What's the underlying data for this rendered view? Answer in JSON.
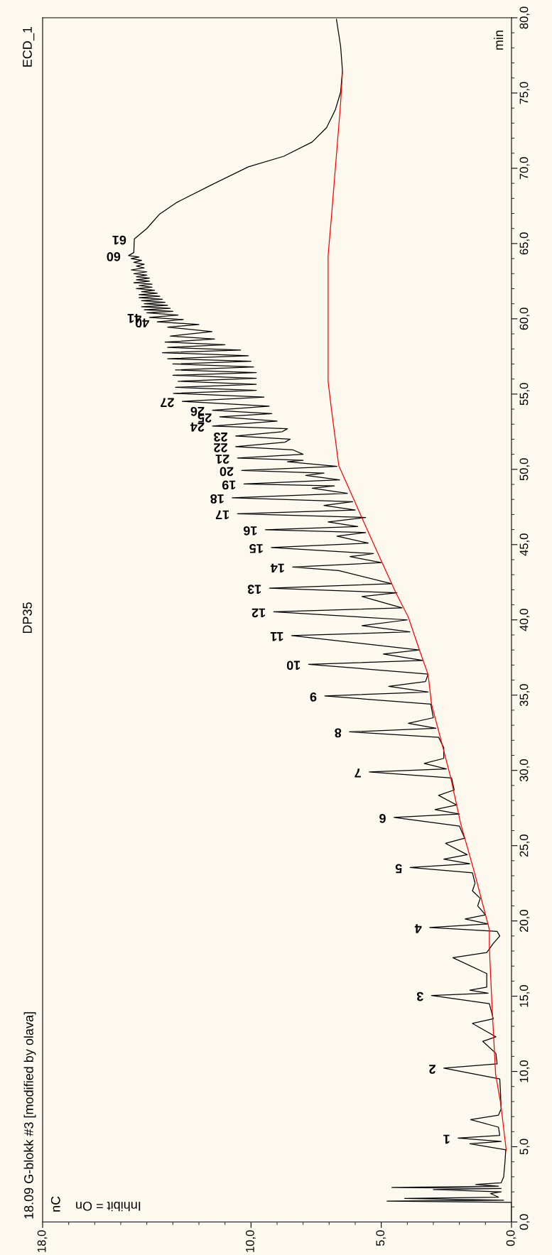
{
  "chart_data": {
    "type": "line",
    "title": "DP35",
    "subtitle": "ECD_1",
    "ylabel": "min",
    "xlim": [
      18,
      0
    ],
    "ylim": [
      0,
      80
    ],
    "yticks": [
      {
        "value": 0,
        "label": "0,0"
      },
      {
        "value": 1,
        "label": null
      },
      {
        "value": 2,
        "label": null
      },
      {
        "value": 3,
        "label": null
      },
      {
        "value": 4,
        "label": null
      },
      {
        "value": 5,
        "label": "5,0"
      },
      {
        "value": 6,
        "label": null
      },
      {
        "value": 7,
        "label": null
      },
      {
        "value": 8,
        "label": null
      },
      {
        "value": 9,
        "label": null
      },
      {
        "value": 10,
        "label": "10,0"
      },
      {
        "value": 11,
        "label": null
      },
      {
        "value": 12,
        "label": null
      },
      {
        "value": 13,
        "label": null
      },
      {
        "value": 14,
        "label": null
      },
      {
        "value": 15,
        "label": "15,0"
      },
      {
        "value": 16,
        "label": null
      },
      {
        "value": 17,
        "label": null
      },
      {
        "value": 18,
        "label": null
      },
      {
        "value": 19,
        "label": null
      },
      {
        "value": 20,
        "label": "20,0"
      },
      {
        "value": 21,
        "label": null
      },
      {
        "value": 22,
        "label": null
      },
      {
        "value": 23,
        "label": null
      },
      {
        "value": 24,
        "label": null
      },
      {
        "value": 25,
        "label": "25,0"
      },
      {
        "value": 26,
        "label": null
      },
      {
        "value": 27,
        "label": null
      },
      {
        "value": 28,
        "label": null
      },
      {
        "value": 29,
        "label": null
      },
      {
        "value": 30,
        "label": "30,0"
      },
      {
        "value": 31,
        "label": null
      },
      {
        "value": 32,
        "label": null
      },
      {
        "value": 33,
        "label": null
      },
      {
        "value": 34,
        "label": null
      },
      {
        "value": 35,
        "label": "35,0"
      },
      {
        "value": 36,
        "label": null
      },
      {
        "value": 37,
        "label": null
      },
      {
        "value": 38,
        "label": null
      },
      {
        "value": 39,
        "label": null
      },
      {
        "value": 40,
        "label": "40,0"
      },
      {
        "value": 41,
        "label": null
      },
      {
        "value": 42,
        "label": null
      },
      {
        "value": 43,
        "label": null
      },
      {
        "value": 44,
        "label": null
      },
      {
        "value": 45,
        "label": "45,0"
      },
      {
        "value": 46,
        "label": null
      },
      {
        "value": 47,
        "label": null
      },
      {
        "value": 48,
        "label": null
      },
      {
        "value": 49,
        "label": null
      },
      {
        "value": 50,
        "label": "50,0"
      },
      {
        "value": 51,
        "label": null
      },
      {
        "value": 52,
        "label": null
      },
      {
        "value": 53,
        "label": null
      },
      {
        "value": 54,
        "label": null
      },
      {
        "value": 55,
        "label": "55,0"
      },
      {
        "value": 56,
        "label": null
      },
      {
        "value": 57,
        "label": null
      },
      {
        "value": 58,
        "label": null
      },
      {
        "value": 59,
        "label": null
      },
      {
        "value": 60,
        "label": "60,0"
      },
      {
        "value": 61,
        "label": null
      },
      {
        "value": 62,
        "label": null
      },
      {
        "value": 63,
        "label": null
      },
      {
        "value": 64,
        "label": null
      },
      {
        "value": 65,
        "label": "65,0"
      },
      {
        "value": 66,
        "label": null
      },
      {
        "value": 67,
        "label": null
      },
      {
        "value": 68,
        "label": null
      },
      {
        "value": 69,
        "label": null
      },
      {
        "value": 70,
        "label": "70,0"
      },
      {
        "value": 71,
        "label": null
      },
      {
        "value": 72,
        "label": null
      },
      {
        "value": 73,
        "label": null
      },
      {
        "value": 74,
        "label": null
      },
      {
        "value": 75,
        "label": "75,0"
      },
      {
        "value": 76,
        "label": null
      },
      {
        "value": 77,
        "label": null
      },
      {
        "value": 78,
        "label": null
      },
      {
        "value": 79,
        "label": null
      },
      {
        "value": 80,
        "label": "80,0"
      }
    ],
    "xticks": [
      {
        "value": 0,
        "label": "0,0"
      },
      {
        "value": 1,
        "label": null
      },
      {
        "value": 2,
        "label": null
      },
      {
        "value": 3,
        "label": null
      },
      {
        "value": 4,
        "label": null
      },
      {
        "value": 5,
        "label": "5,0"
      },
      {
        "value": 6,
        "label": null
      },
      {
        "value": 7,
        "label": null
      },
      {
        "value": 8,
        "label": null
      },
      {
        "value": 9,
        "label": null
      },
      {
        "value": 10,
        "label": "10,0"
      },
      {
        "value": 11,
        "label": null
      },
      {
        "value": 12,
        "label": null
      },
      {
        "value": 13,
        "label": null
      },
      {
        "value": 14,
        "label": null
      },
      {
        "value": 15,
        "label": null
      },
      {
        "value": 16,
        "label": null
      },
      {
        "value": 17,
        "label": null
      },
      {
        "value": 18,
        "label": "18,0"
      }
    ],
    "grid": false,
    "series": [
      {
        "color": "#000000",
        "values": [
          0,
          1.3,
          1.39,
          1.45,
          1.56,
          1.65,
          1.89,
          2.0,
          2.15,
          2.22,
          2.29,
          2.38,
          2.5,
          2.6,
          3.0,
          4.0,
          4.8,
          5.2,
          5.35,
          5.57,
          5.75,
          6.3,
          6.8,
          7.1,
          7.5,
          8.5,
          9.5,
          10.22,
          10.5,
          11.2,
          12.0,
          12.3,
          13.19,
          13.5,
          14.5,
          15.05,
          15.2,
          15.4,
          15.6,
          16.5,
          17.56,
          17.9,
          18.5,
          19.0,
          19.3,
          19.56,
          19.8,
          20.13,
          20.4,
          21.0,
          21.5,
          22.0,
          22.5,
          23.2,
          23.55,
          23.8,
          24.1,
          24.4,
          25.15,
          25.5,
          26.3,
          26.88,
          27.1,
          27.4,
          27.7,
          28.34,
          28.7,
          29.5,
          29.9,
          30.1,
          30.46,
          30.8,
          31.5,
          32.2,
          32.56,
          32.8,
          33.13,
          33.5,
          34.4,
          34.95,
          35.2,
          35.58,
          35.9,
          36.4,
          37.05,
          37.3,
          37.73,
          38.0,
          38.96,
          39.2,
          39.62,
          40.0,
          40.54,
          40.8,
          41.55,
          41.8,
          42.1,
          42.4,
          43.27,
          43.51,
          43.8,
          44.2,
          44.4,
          44.81,
          45.1,
          45.56,
          45.8,
          45.99,
          46.2,
          46.5,
          46.8,
          47.05,
          47.3,
          47.6,
          47.85,
          48.11,
          48.4,
          48.75,
          48.9,
          49.03,
          49.3,
          49.6,
          49.75,
          49.93,
          50.2,
          50.5,
          50.6,
          50.75,
          51.0,
          51.3,
          51.51,
          51.8,
          52.0,
          52.22,
          52.5,
          52.7,
          52.88,
          53.2,
          53.49,
          53.7,
          53.92,
          54.2,
          54.51,
          54.8,
          55.05,
          55.25,
          55.45,
          55.65,
          55.85,
          56.05,
          56.25,
          56.42,
          56.6,
          56.8,
          57.0,
          57.18,
          57.35,
          57.55,
          57.75,
          57.92,
          58.1,
          58.28,
          58.45,
          58.65,
          58.85,
          59.15,
          59.45,
          59.62,
          59.8,
          59.95,
          60.1,
          60.25,
          60.4,
          60.5,
          60.6,
          60.7,
          60.8,
          60.9,
          61.0,
          61.1,
          61.2,
          61.3,
          61.4,
          61.5,
          61.6,
          61.7,
          61.8,
          61.9,
          62.0,
          62.1,
          62.2,
          62.3,
          62.4,
          62.5,
          62.6,
          62.7,
          62.8,
          62.9,
          63.0,
          63.12,
          63.25,
          63.38,
          63.5,
          63.62,
          63.75,
          63.88,
          64.0,
          64.1,
          64.2,
          64.4,
          65.3,
          66.0,
          66.94,
          67.74,
          68.93,
          70.1,
          70.8,
          71.75,
          72.7,
          73.9,
          75.06,
          76.5,
          78.1,
          79.9
        ],
        "x": [
          0.0,
          0.0,
          4.78,
          0.3,
          4.1,
          0.5,
          0.8,
          0.4,
          3.0,
          0.4,
          4.59,
          0.5,
          1.37,
          0.4,
          0.3,
          0.25,
          0.22,
          1.6,
          0.4,
          2.05,
          0.45,
          0.5,
          1.57,
          0.5,
          0.4,
          0.42,
          0.45,
          2.6,
          0.55,
          0.6,
          1.1,
          0.6,
          1.5,
          0.7,
          0.85,
          3.07,
          0.9,
          1.6,
          0.95,
          0.95,
          2.25,
          0.95,
          0.7,
          0.45,
          0.55,
          3.14,
          0.9,
          1.78,
          1.0,
          1.3,
          1.2,
          1.5,
          1.4,
          1.5,
          3.89,
          1.6,
          2.6,
          1.7,
          2.53,
          1.8,
          2.0,
          4.51,
          2.0,
          2.94,
          2.1,
          2.8,
          2.2,
          2.3,
          5.46,
          2.5,
          3.35,
          2.6,
          2.6,
          2.8,
          6.22,
          2.9,
          3.96,
          3.0,
          3.1,
          7.17,
          3.2,
          4.71,
          3.3,
          3.2,
          7.79,
          3.4,
          4.92,
          3.55,
          8.44,
          3.9,
          5.74,
          4.0,
          9.13,
          4.2,
          5.74,
          4.4,
          9.29,
          4.6,
          6.63,
          8.4,
          5.0,
          6.2,
          5.3,
          9.22,
          5.5,
          6.7,
          5.6,
          9.45,
          5.9,
          7.04,
          5.6,
          10.52,
          6.0,
          7.2,
          6.1,
          10.72,
          6.3,
          7.65,
          6.8,
          10.27,
          6.6,
          7.9,
          7.2,
          10.36,
          6.7,
          8.6,
          8.0,
          10.52,
          8.0,
          8.4,
          10.59,
          8.7,
          8.5,
          10.59,
          8.8,
          8.6,
          11.48,
          9.0,
          11.2,
          9.2,
          11.48,
          9.3,
          12.64,
          9.5,
          12.98,
          9.8,
          12.9,
          9.8,
          12.8,
          9.8,
          13.0,
          9.8,
          12.9,
          9.9,
          13.0,
          10.0,
          13.2,
          10.1,
          13.4,
          10.4,
          13.2,
          11.0,
          13.3,
          11.4,
          13.1,
          11.5,
          13.2,
          12.0,
          13.6,
          12.6,
          13.9,
          12.8,
          14.0,
          13.0,
          14.1,
          13.1,
          14.2,
          13.2,
          14.1,
          13.3,
          14.2,
          13.4,
          14.3,
          13.5,
          14.3,
          13.6,
          14.2,
          13.7,
          14.4,
          13.8,
          14.3,
          13.8,
          14.5,
          13.9,
          14.4,
          13.9,
          14.4,
          14.0,
          14.5,
          14.0,
          14.6,
          14.1,
          14.4,
          14.1,
          14.5,
          14.2,
          14.6,
          14.3,
          14.7,
          14.5,
          14.48,
          14.0,
          13.52,
          12.84,
          11.48,
          10.1,
          8.74,
          7.65,
          7.1,
          6.76,
          6.56,
          6.49,
          6.56,
          6.72
        ]
      },
      {
        "color": "#ff0000",
        "values": [
          4.74,
          7.81,
          9.82,
          14.42,
          18.26,
          19.42,
          23.27,
          26.45,
          29.57,
          32.3,
          34.4,
          36.36,
          38.08,
          40.18,
          41.84,
          42.8,
          44.31,
          46.81,
          47.8,
          50.24,
          53.82,
          55.83,
          64.2,
          67.04,
          74.35,
          76.36
        ],
        "x": [
          0.2,
          0.41,
          0.61,
          0.75,
          0.85,
          0.85,
          1.43,
          1.95,
          2.34,
          2.75,
          3.07,
          3.2,
          3.55,
          3.96,
          4.45,
          4.7,
          5.1,
          5.75,
          6.0,
          6.63,
          6.9,
          7.04,
          7.04,
          6.9,
          6.56,
          6.49
        ]
      }
    ],
    "annotations": [
      "18.09 G-blokk #3 [modified by olava]",
      "Inhibit = On",
      "nC",
      {
        "text": "1",
        "y": 5.57,
        "x": 2.05
      },
      {
        "text": "2",
        "y": 10.22,
        "x": 2.6
      },
      {
        "text": "3",
        "y": 15.05,
        "x": 3.07
      },
      {
        "text": "4",
        "y": 19.56,
        "x": 3.14
      },
      {
        "text": "5",
        "y": 23.55,
        "x": 3.89
      },
      {
        "text": "6",
        "y": 26.88,
        "x": 4.51
      },
      {
        "text": "7",
        "y": 29.9,
        "x": 5.46
      },
      {
        "text": "8",
        "y": 32.56,
        "x": 6.22
      },
      {
        "text": "9",
        "y": 34.95,
        "x": 7.17
      },
      {
        "text": "10",
        "y": 37.05,
        "x": 7.79
      },
      {
        "text": "11",
        "y": 38.96,
        "x": 8.44
      },
      {
        "text": "12",
        "y": 40.54,
        "x": 9.13
      },
      {
        "text": "13",
        "y": 42.1,
        "x": 9.29
      },
      {
        "text": "14",
        "y": 43.51,
        "x": 8.4
      },
      {
        "text": "15",
        "y": 44.81,
        "x": 9.22
      },
      {
        "text": "16",
        "y": 45.99,
        "x": 9.45
      },
      {
        "text": "17",
        "y": 47.05,
        "x": 10.52
      },
      {
        "text": "18",
        "y": 48.11,
        "x": 10.72
      },
      {
        "text": "19",
        "y": 49.03,
        "x": 10.27
      },
      {
        "text": "20",
        "y": 49.93,
        "x": 10.36
      },
      {
        "text": "21",
        "y": 50.75,
        "x": 10.52
      },
      {
        "text": "22",
        "y": 51.51,
        "x": 10.59
      },
      {
        "text": "23",
        "y": 52.22,
        "x": 10.59
      },
      {
        "text": "24",
        "y": 52.88,
        "x": 11.48
      },
      {
        "text": "25",
        "y": 53.49,
        "x": 11.2
      },
      {
        "text": "26",
        "y": 53.92,
        "x": 11.48
      },
      {
        "text": "27",
        "y": 54.51,
        "x": 12.64
      },
      {
        "text": "40",
        "y": 59.8,
        "x": 13.6
      },
      {
        "text": "41",
        "y": 60.1,
        "x": 13.9
      },
      {
        "text": "60",
        "y": 64.2,
        "x": 14.7
      },
      {
        "text": "61",
        "y": 65.3,
        "x": 14.48
      }
    ]
  }
}
